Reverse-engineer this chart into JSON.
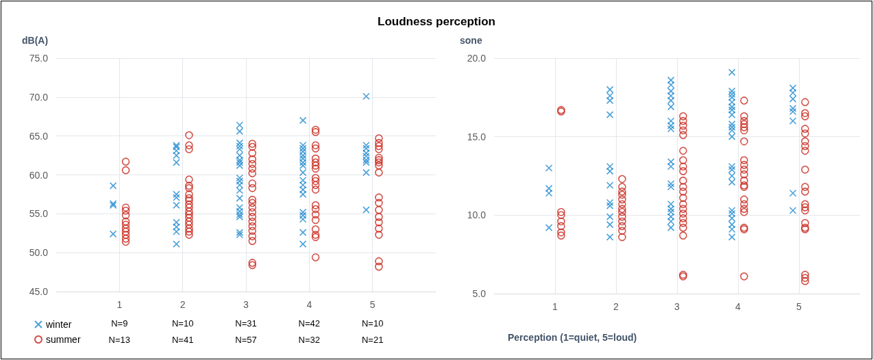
{
  "chart_data": [
    {
      "type": "scatter",
      "title": "Loudness perception",
      "ylabel": "dB(A)",
      "xlim": [
        0,
        6
      ],
      "xticks": [
        1,
        2,
        3,
        4,
        5
      ],
      "ylim": [
        45,
        75
      ],
      "yticks": [
        {
          "value": 45,
          "label": "45.0"
        },
        {
          "value": 50,
          "label": "50.0"
        },
        {
          "value": 55,
          "label": "55.0"
        },
        {
          "value": 60,
          "label": "60.0"
        },
        {
          "value": 65,
          "label": "65.0"
        },
        {
          "value": 70,
          "label": "70.0"
        },
        {
          "value": 75,
          "label": "75.0"
        }
      ],
      "grid": true,
      "legend": "bottom left",
      "annotations": [
        "N=9",
        "N=10",
        "N=31",
        "N=42",
        "N=10",
        "N=13",
        "N=41",
        "N=57",
        "N=32",
        "N=21"
      ],
      "series": [
        {
          "name": "winter",
          "color": "#1f8ad0",
          "marker": "cross",
          "x": [
            0.9,
            0.9,
            0.9,
            0.9,
            1.9,
            1.9,
            1.9,
            1.9,
            1.9,
            1.9,
            1.9,
            1.9,
            1.9,
            1.9,
            1.9,
            1.9,
            2.9,
            2.9,
            2.9,
            2.9,
            2.9,
            2.9,
            2.9,
            2.9,
            2.9,
            2.9,
            2.9,
            2.9,
            2.9,
            2.9,
            2.9,
            2.9,
            2.9,
            2.9,
            2.9,
            2.9,
            3.9,
            3.9,
            3.9,
            3.9,
            3.9,
            3.9,
            3.9,
            3.9,
            3.9,
            3.9,
            3.9,
            3.9,
            3.9,
            3.9,
            3.9,
            3.9,
            3.9,
            3.9,
            4.9,
            4.9,
            4.9,
            4.9,
            4.9,
            4.9,
            4.9,
            4.9,
            4.9
          ],
          "values": [
            58.6,
            56.3,
            56.1,
            52.4,
            63.8,
            63.6,
            63.1,
            62.5,
            61.6,
            57.5,
            57.1,
            56.1,
            53.9,
            53.3,
            52.7,
            51.1,
            66.4,
            65.6,
            64.1,
            63.7,
            63.3,
            62.5,
            61.9,
            61.6,
            61.2,
            59.6,
            59.2,
            58.7,
            58.0,
            57.0,
            55.8,
            55.3,
            54.9,
            54.6,
            52.6,
            52.3,
            67.0,
            63.8,
            63.4,
            63.0,
            62.5,
            62.1,
            61.6,
            61.2,
            60.3,
            59.3,
            58.7,
            58.1,
            57.5,
            55.2,
            54.8,
            54.3,
            52.6,
            51.1,
            70.1,
            63.8,
            63.4,
            62.8,
            62.4,
            61.9,
            61.6,
            60.3,
            55.5
          ]
        },
        {
          "name": "summer",
          "color": "#c8281e",
          "marker": "circle",
          "x": [
            1.1,
            1.1,
            1.1,
            1.1,
            1.1,
            1.1,
            1.1,
            1.1,
            1.1,
            1.1,
            1.1,
            1.1,
            2.1,
            2.1,
            2.1,
            2.1,
            2.1,
            2.1,
            2.1,
            2.1,
            2.1,
            2.1,
            2.1,
            2.1,
            2.1,
            2.1,
            2.1,
            2.1,
            2.1,
            2.1,
            2.1,
            3.1,
            3.1,
            3.1,
            3.1,
            3.1,
            3.1,
            3.1,
            3.1,
            3.1,
            3.1,
            3.1,
            3.1,
            3.1,
            3.1,
            3.1,
            3.1,
            3.1,
            3.1,
            3.1,
            3.1,
            3.1,
            4.1,
            4.1,
            4.1,
            4.1,
            4.1,
            4.1,
            4.1,
            4.1,
            4.1,
            4.1,
            4.1,
            4.1,
            4.1,
            4.1,
            4.1,
            4.1,
            4.1,
            4.1,
            4.1,
            4.1,
            5.1,
            5.1,
            5.1,
            5.1,
            5.1,
            5.1,
            5.1,
            5.1,
            5.1,
            5.1,
            5.1,
            5.1,
            5.1,
            5.1,
            5.1,
            5.1,
            5.1,
            5.1
          ],
          "values": [
            61.7,
            60.6,
            55.8,
            55.4,
            54.8,
            54.0,
            53.6,
            53.1,
            52.7,
            52.3,
            51.8,
            51.4,
            65.1,
            63.8,
            63.3,
            59.4,
            58.6,
            58.3,
            57.5,
            57.0,
            56.7,
            56.2,
            55.8,
            55.3,
            54.9,
            54.5,
            54.0,
            53.6,
            53.1,
            52.7,
            52.3,
            64.0,
            63.6,
            62.8,
            62.0,
            61.4,
            60.8,
            60.2,
            58.9,
            58.3,
            56.8,
            56.4,
            55.8,
            55.2,
            54.6,
            54.0,
            53.4,
            52.8,
            52.1,
            51.5,
            48.7,
            48.4,
            65.8,
            65.5,
            63.8,
            63.4,
            62.1,
            61.6,
            61.2,
            60.8,
            59.6,
            59.2,
            58.7,
            58.1,
            56.1,
            55.6,
            54.9,
            54.2,
            53.0,
            52.3,
            52.0,
            49.4,
            64.7,
            64.1,
            63.7,
            63.3,
            62.2,
            61.9,
            61.6,
            61.2,
            60.3,
            57.1,
            56.4,
            55.5,
            54.6,
            53.9,
            53.1,
            52.3,
            48.9,
            48.2
          ]
        }
      ]
    },
    {
      "type": "scatter",
      "ylabel": "sone",
      "xlabel": "Perception (1=quiet, 5=loud)",
      "xlim": [
        0,
        6
      ],
      "xticks": [
        1,
        2,
        3,
        4,
        5
      ],
      "ylim": [
        5,
        20
      ],
      "yticks": [
        {
          "value": 5,
          "label": "5.0"
        },
        {
          "value": 10,
          "label": "10.0"
        },
        {
          "value": 15,
          "label": "15.0"
        },
        {
          "value": 20,
          "label": "20.0"
        }
      ],
      "grid": true,
      "series": [
        {
          "color": "#1f8ad0",
          "marker": "cross",
          "x": [
            0.9,
            0.9,
            0.9,
            0.9,
            1.9,
            1.9,
            1.9,
            1.9,
            1.9,
            1.9,
            1.9,
            1.9,
            1.9,
            1.9,
            1.9,
            1.9,
            2.9,
            2.9,
            2.9,
            2.9,
            2.9,
            2.9,
            2.9,
            2.9,
            2.9,
            2.9,
            2.9,
            2.9,
            2.9,
            2.9,
            2.9,
            2.9,
            2.9,
            2.9,
            2.9,
            3.9,
            3.9,
            3.9,
            3.9,
            3.9,
            3.9,
            3.9,
            3.9,
            3.9,
            3.9,
            3.9,
            3.9,
            3.9,
            3.9,
            3.9,
            3.9,
            3.9,
            3.9,
            3.9,
            3.9,
            3.9,
            3.9,
            4.9,
            4.9,
            4.9,
            4.9,
            4.9,
            4.9,
            4.9,
            4.9
          ],
          "values": [
            13.0,
            11.7,
            11.4,
            9.2,
            18.0,
            17.6,
            17.3,
            16.4,
            13.1,
            12.8,
            11.9,
            10.8,
            10.6,
            9.9,
            9.4,
            8.6,
            18.6,
            18.3,
            17.9,
            17.6,
            17.3,
            16.9,
            16.0,
            15.7,
            15.5,
            13.4,
            13.1,
            12.0,
            11.8,
            10.7,
            10.4,
            10.2,
            9.9,
            9.6,
            9.2,
            19.1,
            17.9,
            17.7,
            17.5,
            17.2,
            16.9,
            16.7,
            16.4,
            15.8,
            15.6,
            15.4,
            15.0,
            13.1,
            12.9,
            12.5,
            12.1,
            10.3,
            10.1,
            9.8,
            9.4,
            9.1,
            8.6,
            18.1,
            17.8,
            17.4,
            16.8,
            16.6,
            16.0,
            11.4,
            10.3
          ]
        },
        {
          "color": "#c8281e",
          "marker": "circle",
          "x": [
            1.1,
            1.1,
            1.1,
            1.1,
            1.1,
            1.1,
            1.1,
            1.1,
            2.1,
            2.1,
            2.1,
            2.1,
            2.1,
            2.1,
            2.1,
            2.1,
            2.1,
            2.1,
            2.1,
            2.1,
            2.1,
            3.1,
            3.1,
            3.1,
            3.1,
            3.1,
            3.1,
            3.1,
            3.1,
            3.1,
            3.1,
            3.1,
            3.1,
            3.1,
            3.1,
            3.1,
            3.1,
            3.1,
            3.1,
            3.1,
            3.1,
            3.1,
            3.1,
            4.1,
            4.1,
            4.1,
            4.1,
            4.1,
            4.1,
            4.1,
            4.1,
            4.1,
            4.1,
            4.1,
            4.1,
            4.1,
            4.1,
            4.1,
            4.1,
            4.1,
            4.1,
            4.1,
            4.1,
            4.1,
            5.1,
            5.1,
            5.1,
            5.1,
            5.1,
            5.1,
            5.1,
            5.1,
            5.1,
            5.1,
            5.1,
            5.1,
            5.1,
            5.1,
            5.1,
            5.1,
            5.1,
            5.1,
            5.1,
            5.1
          ],
          "values": [
            16.7,
            16.6,
            10.2,
            10.0,
            9.6,
            9.3,
            8.9,
            8.7,
            12.3,
            11.8,
            11.5,
            11.3,
            11.0,
            10.7,
            10.4,
            10.2,
            9.9,
            9.6,
            9.3,
            9.0,
            8.6,
            16.3,
            16.0,
            15.7,
            15.4,
            15.1,
            14.1,
            13.5,
            13.1,
            12.8,
            12.2,
            11.8,
            11.5,
            11.1,
            10.7,
            10.4,
            10.1,
            9.8,
            9.5,
            9.2,
            8.7,
            6.2,
            6.1,
            17.3,
            16.3,
            16.0,
            15.8,
            15.6,
            15.4,
            14.7,
            13.5,
            13.2,
            12.9,
            12.6,
            12.2,
            11.9,
            11.8,
            11.0,
            10.7,
            10.4,
            10.2,
            9.2,
            9.1,
            6.1,
            17.2,
            16.5,
            16.3,
            15.5,
            15.2,
            14.7,
            14.4,
            14.1,
            12.9,
            11.8,
            11.5,
            10.7,
            10.5,
            10.3,
            9.5,
            9.2,
            9.1,
            6.2,
            6.0,
            5.8
          ]
        }
      ]
    }
  ]
}
